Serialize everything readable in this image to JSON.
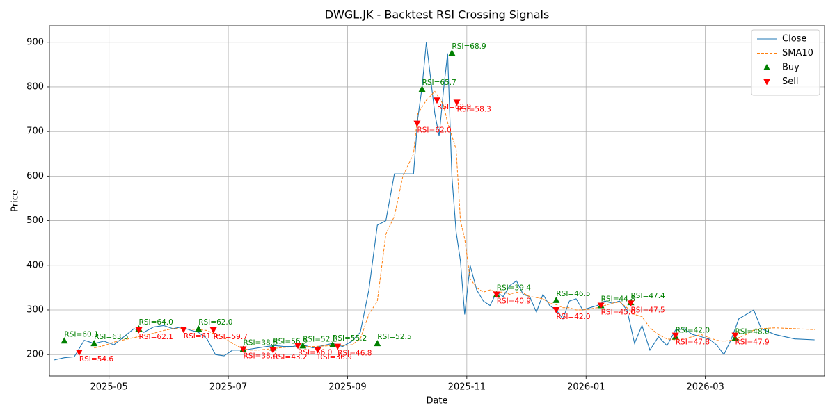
{
  "chart_data": {
    "type": "line",
    "title": "DWGL.JK - Backtest RSI Crossing Signals",
    "x_label": "Date",
    "y_label": "Price",
    "x": [
      "2025-04",
      "2025-04",
      "2025-04",
      "2025-04",
      "2025-04",
      "2025-04",
      "2025-05",
      "2025-05",
      "2025-05",
      "2025-05",
      "2025-05",
      "2025-05",
      "2025-06",
      "2025-06",
      "2025-06",
      "2025-06",
      "2025-06",
      "2025-06",
      "2025-06",
      "2025-07",
      "2025-07",
      "2025-07",
      "2025-07",
      "2025-07",
      "2025-07",
      "2025-07",
      "2025-08",
      "2025-08",
      "2025-08",
      "2025-08",
      "2025-08",
      "2025-08",
      "2025-09",
      "2025-09",
      "2025-09",
      "2025-09",
      "2025-09",
      "2025-09",
      "2025-09",
      "2025-10",
      "2025-10",
      "2025-10",
      "2025-10",
      "2025-10",
      "2025-10",
      "2025-10",
      "2025-10",
      "2025-10",
      "2025-10",
      "2025-10",
      "2025-10",
      "2025-10",
      "2025-10",
      "2025-11",
      "2025-11",
      "2025-11",
      "2025-11",
      "2025-11",
      "2025-11",
      "2025-11",
      "2025-11",
      "2025-11",
      "2025-12",
      "2025-12",
      "2025-12",
      "2025-12",
      "2025-12",
      "2025-12",
      "2025-12",
      "2025-12",
      "2025-12",
      "2026-01",
      "2026-01",
      "2026-01",
      "2026-01",
      "2026-01",
      "2026-01",
      "2026-01",
      "2026-01",
      "2026-02",
      "2026-02",
      "2026-02",
      "2026-02",
      "2026-02",
      "2026-02",
      "2026-02",
      "2026-03",
      "2026-03",
      "2026-03",
      "2026-03",
      "2026-03",
      "2026-03",
      "2026-03",
      "2026-03",
      "2026-04",
      "2026-04",
      "2026-04"
    ],
    "series": [
      {
        "name": "Close",
        "color": "#1f77b4",
        "dashed": false,
        "values": [
          188,
          193,
          195,
          232,
          225,
          230,
          222,
          240,
          258,
          250,
          262,
          265,
          258,
          262,
          255,
          250,
          235,
          200,
          197,
          210,
          210,
          212,
          215,
          218,
          220,
          218,
          218,
          222,
          215,
          220,
          225,
          218,
          230,
          250,
          345,
          490,
          500,
          605,
          605,
          605,
          605,
          730,
          800,
          900,
          820,
          740,
          690,
          790,
          875,
          600,
          475,
          410,
          290,
          400,
          345,
          320,
          310,
          340,
          330,
          355,
          365,
          335,
          330,
          295,
          335,
          310,
          300,
          280,
          320,
          325,
          300,
          305,
          310,
          320,
          315,
          320,
          300,
          225,
          265,
          210,
          240,
          220,
          255,
          258,
          245,
          240,
          235,
          222,
          200,
          235,
          280,
          290,
          300,
          258,
          245,
          235,
          233
        ]
      },
      {
        "name": "SMA10",
        "color": "#ff7f0e",
        "dashed": true,
        "values": [
          null,
          null,
          null,
          null,
          215,
          220,
          228,
          233,
          238,
          242,
          248,
          254,
          258,
          258,
          257,
          256,
          254,
          245,
          238,
          225,
          215,
          210,
          210,
          212,
          214,
          216,
          217,
          218,
          218,
          219,
          220,
          220,
          222,
          235,
          290,
          320,
          470,
          510,
          600,
          630,
          650,
          740,
          755,
          770,
          780,
          790,
          775,
          760,
          720,
          690,
          660,
          500,
          460,
          370,
          350,
          340,
          345,
          340,
          340,
          335,
          340,
          338,
          330,
          328,
          325,
          315,
          312,
          305,
          305,
          300,
          300,
          302,
          305,
          310,
          315,
          318,
          305,
          290,
          285,
          260,
          245,
          235,
          233,
          235,
          240,
          245,
          238,
          232,
          230,
          232,
          238,
          245,
          255,
          258,
          260,
          258,
          256
        ]
      }
    ],
    "signals": [
      {
        "name": "Buy",
        "color": "green",
        "marker": "up",
        "x": [
          "2025-04",
          "2025-04",
          "2025-05",
          "2025-06",
          "2025-07",
          "2025-07",
          "2025-08",
          "2025-08",
          "2025-09",
          "2025-10",
          "2025-10",
          "2025-11",
          "2025-12",
          "2026-01",
          "2026-01",
          "2026-02",
          "2026-03"
        ],
        "values": [
          231,
          225,
          258,
          258,
          212,
          215,
          220,
          222,
          225,
          795,
          876,
          335,
          322,
          310,
          317,
          240,
          237
        ],
        "labels": [
          "RSI=60.1",
          "RSI=63.5",
          "RSI=64.0",
          "RSI=62.0",
          "RSI=38.5",
          "RSI=56.9",
          "RSI=52.1",
          "RSI=55.2",
          "RSI=52.5",
          "RSI=65.7",
          "RSI=68.9",
          "RSI=39.4",
          "RSI=46.5",
          "RSI=44.8",
          "RSI=47.4",
          "RSI=42.0",
          "RSI=48.0"
        ]
      },
      {
        "name": "Sell",
        "color": "red",
        "marker": "down",
        "x": [
          "2025-04",
          "2025-05",
          "2025-06",
          "2025-06",
          "2025-07",
          "2025-07",
          "2025-08",
          "2025-08",
          "2025-08",
          "2025-10",
          "2025-10",
          "2025-10",
          "2025-11",
          "2025-12",
          "2026-01",
          "2026-01",
          "2026-02",
          "2026-03"
        ],
        "values": [
          205,
          255,
          256,
          255,
          212,
          210,
          220,
          210,
          218,
          718,
          770,
          765,
          335,
          300,
          310,
          315,
          243,
          243
        ],
        "labels": [
          "RSI=54.6",
          "RSI=62.1",
          "RSI=61.9",
          "RSI=59.7",
          "RSI=38.4",
          "RSI=43.2",
          "RSI=56.0",
          "RSI=36.9",
          "RSI=46.8",
          "RSI=62.0",
          "RSI=62.9",
          "RSI=58.3",
          "RSI=40.9",
          "RSI=42.0",
          "RSI=45.0",
          "RSI=47.5",
          "RSI=47.8",
          "RSI=47.9"
        ]
      }
    ],
    "xlim": [
      "2025-04",
      "2026-04"
    ],
    "xticks": [
      "2025-05",
      "2025-07",
      "2025-09",
      "2025-11",
      "2026-01",
      "2026-03"
    ],
    "ylim": [
      152,
      937
    ],
    "yticks": [
      200,
      300,
      400,
      500,
      600,
      700,
      800,
      900
    ],
    "grid": true,
    "legend": "upper right"
  }
}
